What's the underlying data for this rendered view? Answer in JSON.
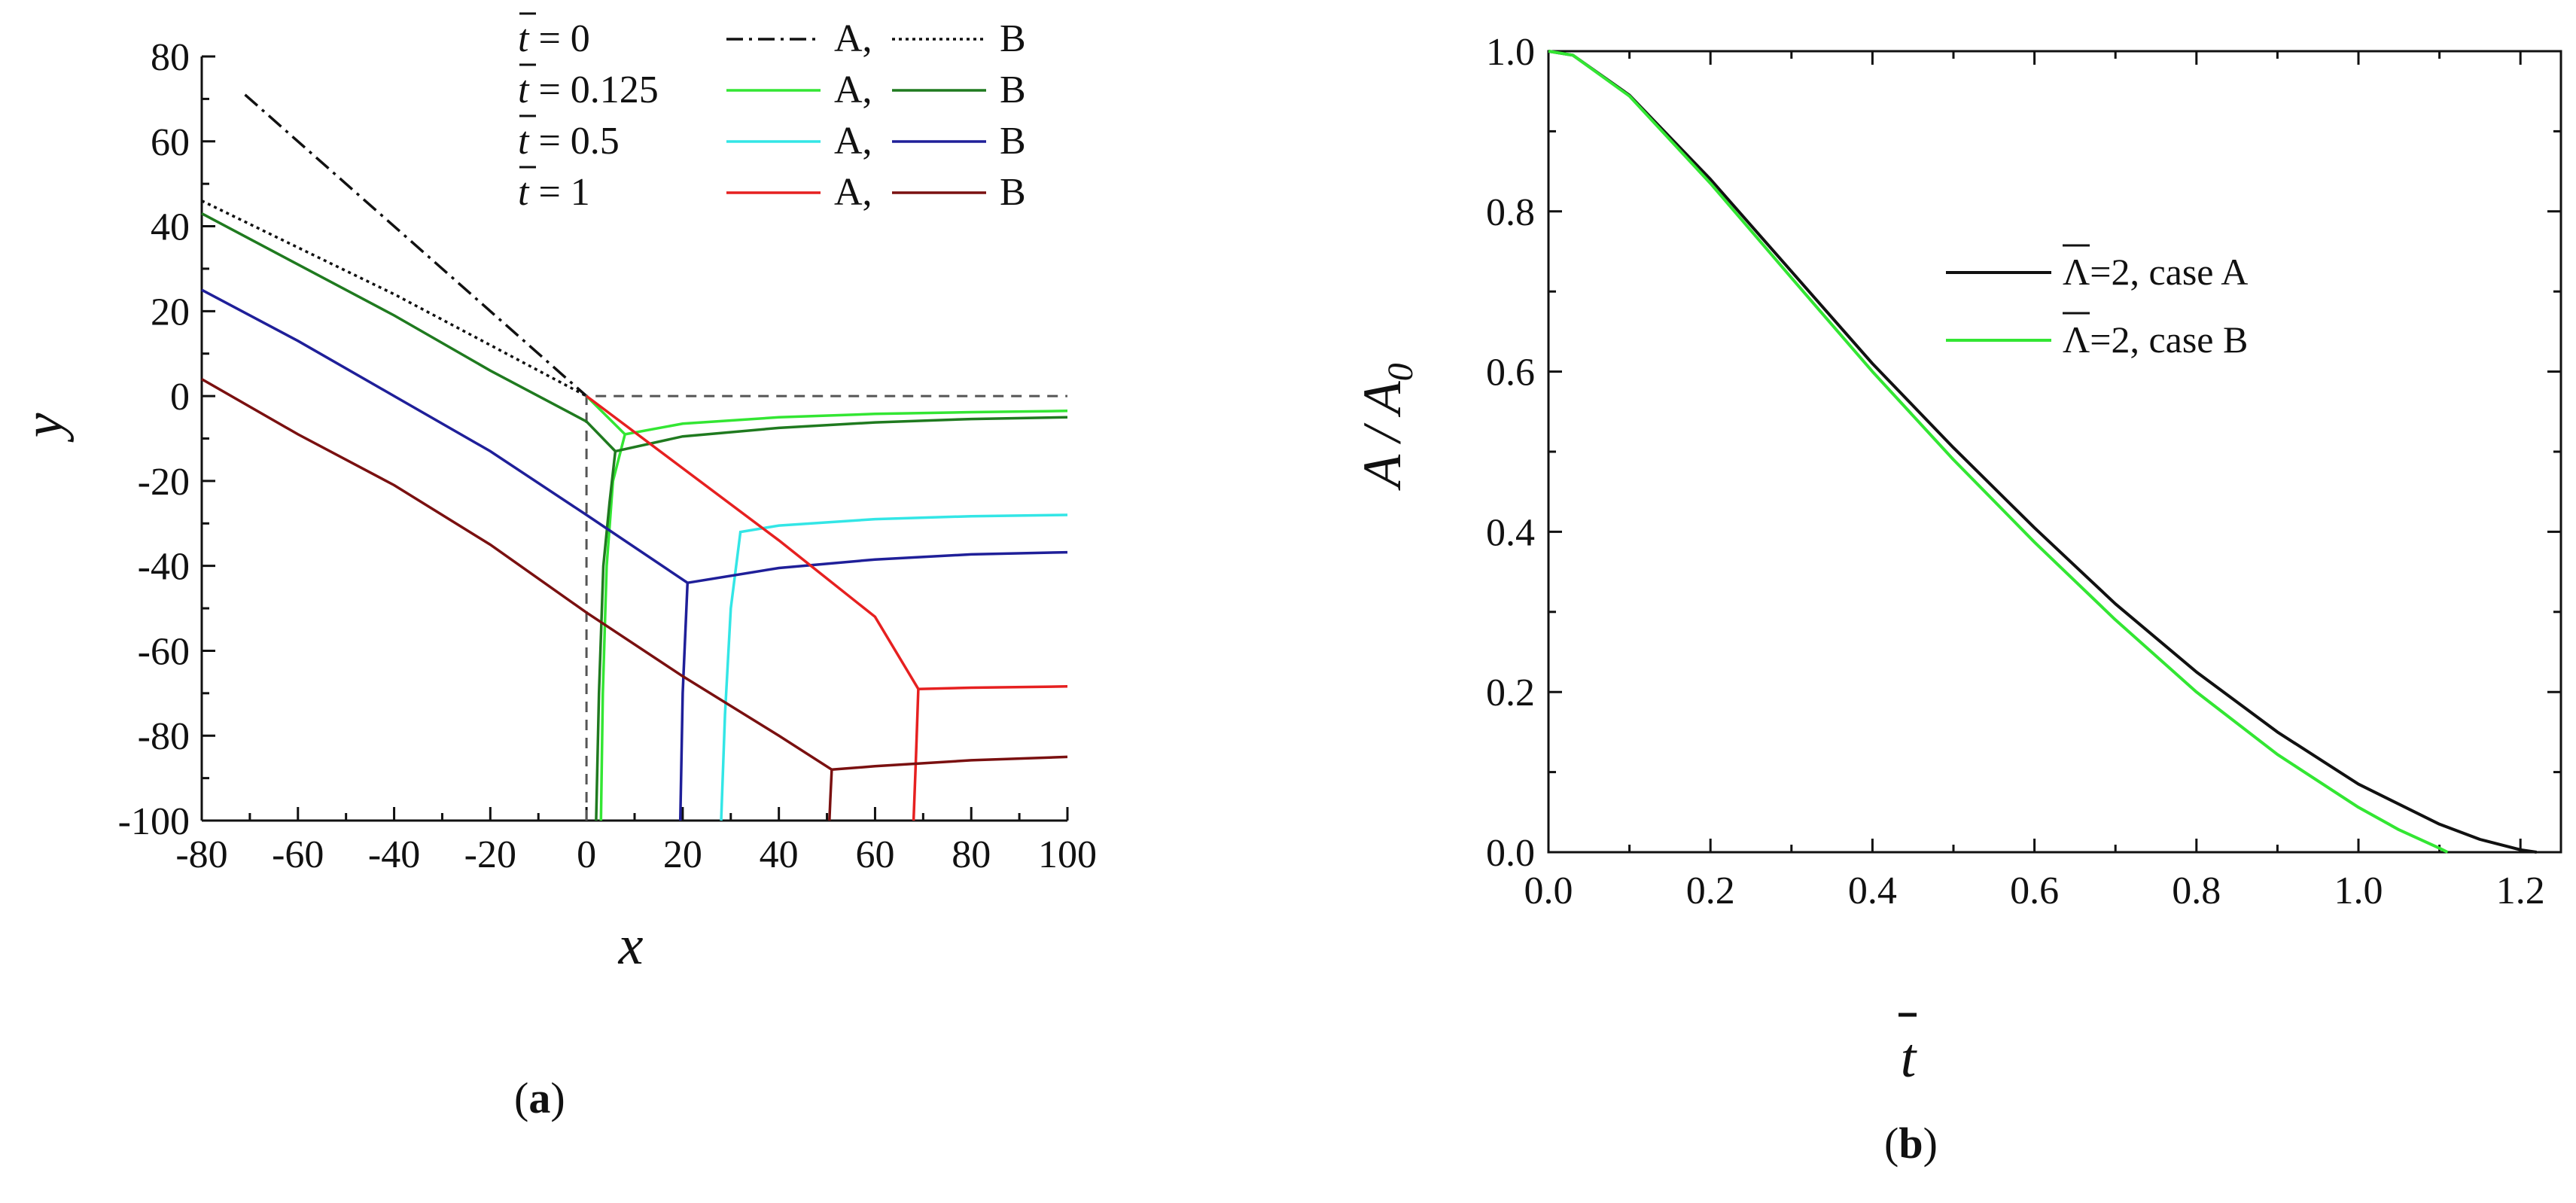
{
  "chart_data": [
    {
      "type": "line",
      "panel_label": "a",
      "xlabel": "x",
      "ylabel": "y",
      "xlim": [
        -80,
        100
      ],
      "ylim": [
        -100,
        80
      ],
      "xticks": [
        -80,
        -60,
        -40,
        -20,
        0,
        20,
        40,
        60,
        80,
        100
      ],
      "yticks": [
        80,
        60,
        40,
        20,
        0,
        -20,
        -40,
        -60,
        -80,
        -100
      ],
      "legend_placement": "top-right",
      "legend_rows": [
        {
          "time": "0",
          "a_label": "A,",
          "b_label": "B",
          "a_color": "#111111",
          "b_color": "#111111",
          "a_style": "dashdot",
          "b_style": "dotted"
        },
        {
          "time": "0.125",
          "a_label": "A,",
          "b_label": "B",
          "a_color": "#33e633",
          "b_color": "#1f7a1f",
          "a_style": "solid",
          "b_style": "solid"
        },
        {
          "time": "0.5",
          "a_label": "A,",
          "b_label": "B",
          "a_color": "#33e6e6",
          "b_color": "#1f1f99",
          "a_style": "solid",
          "b_style": "solid"
        },
        {
          "time": "1",
          "a_label": "A,",
          "b_label": "B",
          "a_color": "#e62020",
          "b_color": "#7a1010",
          "a_style": "solid",
          "b_style": "solid"
        }
      ],
      "series": [
        {
          "name": "t=0 A",
          "color": "#111111",
          "style": "dashdot",
          "points": [
            [
              -71,
              71
            ],
            [
              0,
              0
            ]
          ]
        },
        {
          "name": "t=0 B",
          "color": "#111111",
          "style": "dotted",
          "points": [
            [
              -80,
              46
            ],
            [
              -60,
              35
            ],
            [
              -40,
              24
            ],
            [
              -20,
              12
            ],
            [
              0,
              0
            ]
          ]
        },
        {
          "name": "t=0 axes",
          "color": "#555555",
          "style": "dashed",
          "points": [
            [
              0,
              -100
            ],
            [
              0,
              0
            ],
            [
              100,
              0
            ]
          ]
        },
        {
          "name": "t=0.125 A",
          "color": "#33e633",
          "style": "solid",
          "points": [
            [
              3,
              -100
            ],
            [
              3.4,
              -70
            ],
            [
              4.2,
              -40
            ],
            [
              5.5,
              -20
            ],
            [
              8,
              -9
            ],
            [
              8,
              -9
            ],
            [
              20,
              -6.5
            ],
            [
              40,
              -5
            ],
            [
              60,
              -4.2
            ],
            [
              80,
              -3.8
            ],
            [
              100,
              -3.5
            ]
          ]
        },
        {
          "name": "t=0.125 A diag",
          "color": "#33e633",
          "style": "solid",
          "points": [
            [
              0,
              0
            ],
            [
              8,
              -9
            ]
          ]
        },
        {
          "name": "t=0.125 B",
          "color": "#1f7a1f",
          "style": "solid",
          "points": [
            [
              2,
              -100
            ],
            [
              2.6,
              -70
            ],
            [
              3.5,
              -40
            ],
            [
              4.8,
              -25
            ],
            [
              6,
              -13
            ]
          ]
        },
        {
          "name": "t=0.125 B lower",
          "color": "#1f7a1f",
          "style": "solid",
          "points": [
            [
              -80,
              43
            ],
            [
              -60,
              31
            ],
            [
              -40,
              19
            ],
            [
              -20,
              6
            ],
            [
              0,
              -6
            ],
            [
              6,
              -13
            ],
            [
              20,
              -9.5
            ],
            [
              40,
              -7.5
            ],
            [
              60,
              -6.2
            ],
            [
              80,
              -5.4
            ],
            [
              100,
              -5
            ]
          ]
        },
        {
          "name": "t=0.5 A",
          "color": "#33e6e6",
          "style": "solid",
          "points": [
            [
              28,
              -100
            ],
            [
              28.8,
              -75
            ],
            [
              30,
              -50
            ],
            [
              32,
              -32
            ],
            [
              40,
              -30.5
            ],
            [
              60,
              -29
            ],
            [
              80,
              -28.3
            ],
            [
              100,
              -28
            ]
          ]
        },
        {
          "name": "t=0.5 B",
          "color": "#1f1f99",
          "style": "solid",
          "points": [
            [
              -80,
              25
            ],
            [
              -60,
              13
            ],
            [
              -40,
              0
            ],
            [
              -20,
              -13
            ],
            [
              0,
              -28
            ],
            [
              21,
              -44
            ],
            [
              20,
              -70
            ],
            [
              19.5,
              -100
            ]
          ]
        },
        {
          "name": "t=0.5 B right",
          "color": "#1f1f99",
          "style": "solid",
          "points": [
            [
              21,
              -44
            ],
            [
              40,
              -40.5
            ],
            [
              60,
              -38.5
            ],
            [
              80,
              -37.3
            ],
            [
              100,
              -36.8
            ]
          ]
        },
        {
          "name": "t=1 A",
          "color": "#e62020",
          "style": "solid",
          "points": [
            [
              0,
              0
            ],
            [
              20,
              -17
            ],
            [
              40,
              -34
            ],
            [
              60,
              -52
            ],
            [
              69,
              -69
            ],
            [
              68.5,
              -85
            ],
            [
              68,
              -100
            ]
          ]
        },
        {
          "name": "t=1 A right",
          "color": "#e62020",
          "style": "solid",
          "points": [
            [
              69,
              -69
            ],
            [
              80,
              -68.7
            ],
            [
              100,
              -68.4
            ]
          ]
        },
        {
          "name": "t=1 B",
          "color": "#7a1010",
          "style": "solid",
          "points": [
            [
              -80,
              4
            ],
            [
              -60,
              -9
            ],
            [
              -40,
              -21
            ],
            [
              -20,
              -35
            ],
            [
              0,
              -51
            ],
            [
              20,
              -66
            ],
            [
              40,
              -80
            ],
            [
              51,
              -88
            ],
            [
              50.7,
              -95
            ],
            [
              50.5,
              -100
            ]
          ]
        },
        {
          "name": "t=1 B right",
          "color": "#7a1010",
          "style": "solid",
          "points": [
            [
              51,
              -88
            ],
            [
              60,
              -87.2
            ],
            [
              80,
              -85.8
            ],
            [
              100,
              -85
            ]
          ]
        }
      ]
    },
    {
      "type": "line",
      "panel_label": "b",
      "xlabel": "t",
      "ylabel": "A / A",
      "ylabel_sub": "0",
      "xlim": [
        0.0,
        1.25
      ],
      "ylim": [
        0.0,
        1.0
      ],
      "xticks": [
        "0.0",
        "0.2",
        "0.4",
        "0.6",
        "0.8",
        "1.0",
        "1.2"
      ],
      "yticks": [
        "1.0",
        "0.8",
        "0.6",
        "0.4",
        "0.2",
        "0.0"
      ],
      "legend_placement": "center-right",
      "legend": [
        {
          "label": "Λ=2, case A",
          "color": "#111111"
        },
        {
          "label": "Λ=2, case B",
          "color": "#33e633"
        }
      ],
      "series": [
        {
          "name": "Λ=2, case A",
          "color": "#111111",
          "x": [
            0.0,
            0.03,
            0.1,
            0.2,
            0.3,
            0.4,
            0.5,
            0.6,
            0.7,
            0.8,
            0.9,
            1.0,
            1.1,
            1.15,
            1.2,
            1.22
          ],
          "y": [
            1.0,
            0.995,
            0.945,
            0.84,
            0.725,
            0.61,
            0.505,
            0.405,
            0.31,
            0.225,
            0.15,
            0.085,
            0.035,
            0.016,
            0.003,
            0.0
          ]
        },
        {
          "name": "Λ=2, case B",
          "color": "#33e633",
          "x": [
            0.0,
            0.03,
            0.1,
            0.2,
            0.3,
            0.4,
            0.5,
            0.6,
            0.7,
            0.8,
            0.9,
            1.0,
            1.05,
            1.1,
            1.11
          ],
          "y": [
            1.0,
            0.995,
            0.944,
            0.835,
            0.717,
            0.6,
            0.49,
            0.387,
            0.29,
            0.2,
            0.122,
            0.056,
            0.028,
            0.005,
            0.0
          ]
        }
      ]
    }
  ]
}
